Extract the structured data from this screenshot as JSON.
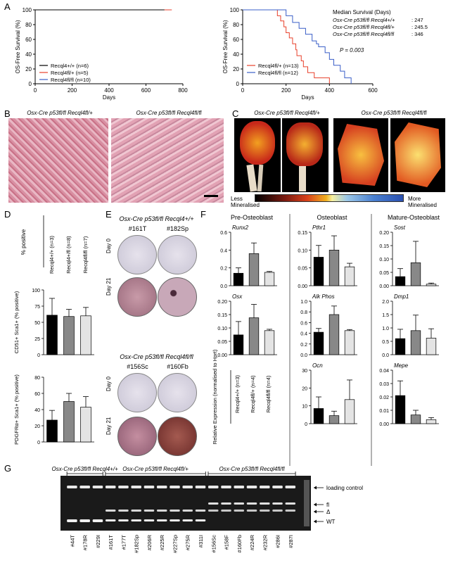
{
  "panel_letters": [
    "A",
    "B",
    "C",
    "D",
    "E",
    "F",
    "G"
  ],
  "panelA": {
    "left": {
      "ylabel": "OS-Free Survival (%)",
      "xlabel": "Days",
      "yticks": [
        "0",
        "20",
        "40",
        "60",
        "80",
        "100"
      ],
      "xticks": [
        "0",
        "200",
        "400",
        "600",
        "800"
      ],
      "legend": [
        "Recql4+/+ (n=6)",
        "Recql4fl/+ (n=5)",
        "Recql4fl/fl (n=10)"
      ]
    },
    "right": {
      "ylabel": "OS-Free Survival (%)",
      "xlabel": "Days",
      "yticks": [
        "0",
        "20",
        "40",
        "60",
        "80",
        "100"
      ],
      "xticks": [
        "0",
        "200",
        "400",
        "600"
      ],
      "legend": [
        "Recql4fl/+ (n=13)",
        "Recql4fl/fl (n=12)"
      ],
      "pvalue": "P = 0.003",
      "median_title": "Median Survival (Days)",
      "median_rows": [
        {
          "label": "Osx-Cre p53fl/fl Recql4+/+",
          "value": ": 247"
        },
        {
          "label": "Osx-Cre p53fl/fl Recql4fl/+",
          "value": ": 245.5"
        },
        {
          "label": "Osx-Cre p53fl/fl Recql4fl/fl",
          "value": ": 346"
        }
      ]
    }
  },
  "panelB": {
    "titles": [
      "Osx-Cre p53fl/fl Recql4fl/+",
      "Osx-Cre p53fl/fl Recql4fl/fl"
    ]
  },
  "panelC": {
    "titles": [
      "Osx-Cre p53fl/fl Recql4fl/+",
      "Osx-Cre p53fl/fl Recql4fl/fl"
    ],
    "scale_left": "Less Mineralised",
    "scale_right": "More Mineralised"
  },
  "panelD": {
    "top_ylabel": "% positive",
    "groups": [
      "Recql4+/+ (n=3)",
      "Recql4+/fl (n=8)",
      "Recql4fl/fl (n=7)"
    ],
    "mid_ylabel": "CD51+ Sca1+ (% positive)",
    "bot_ylabel": "PDGFRα+ Sca1+ (% positive)"
  },
  "panelE": {
    "title1": "Osx-Cre p53fl/fl Recql4+/+",
    "ids1": [
      "#161T",
      "#182Sp"
    ],
    "title2": "Osx-Cre p53fl/fl Recql4fl/fl",
    "ids2": [
      "#156Sc",
      "#160Fb"
    ],
    "rows": [
      "Day 0",
      "Day 21"
    ]
  },
  "panelF": {
    "columns": [
      "Pre-Osteoblast",
      "Osteoblast",
      "Mature-Osteoblast"
    ],
    "genes": [
      "Runx2",
      "Pthr1",
      "Sost",
      "Osx",
      "Alk Phos",
      "Dmp1",
      "Ocn",
      "Mepe"
    ],
    "ylabel": "Relative Expression (normalised to Hprt)",
    "groups": [
      "Recql4+/+ (n=3)",
      "Recql4fl/+ (n=4)",
      "Recql4fl/fl (n=4)"
    ]
  },
  "panelG": {
    "group_labels": [
      "Osx-Cre p53fl/fl Recql4+/+",
      "Osx-Cre p53fl/fl Recql4fl/+",
      "Osx-Cre p53fl/fl Recql4fl/fl"
    ],
    "lanes": [
      "#44T",
      "#178R",
      "#229I",
      "#161T",
      "#177T",
      "#182Sp",
      "#206R",
      "#225R",
      "#227Sp",
      "#275R",
      "#311I",
      "#156Sc",
      "#158F",
      "#160Fb",
      "#224R",
      "#232R",
      "#286I",
      "#287I"
    ],
    "band_labels": [
      "loading control",
      "fl",
      "Δ",
      "WT"
    ]
  },
  "chart_data": [
    {
      "type": "line",
      "title": "",
      "xlabel": "Days",
      "ylabel": "OS-Free Survival (%)",
      "xlim": [
        0,
        800
      ],
      "ylim": [
        0,
        100
      ],
      "series": [
        {
          "name": "Recql4+/+ (n=6)",
          "color": "#000000",
          "x": [
            0,
            730
          ],
          "y": [
            100,
            100
          ]
        },
        {
          "name": "Recql4fl/+ (n=5)",
          "color": "#e8412c",
          "x": [
            700,
            740
          ],
          "y": [
            100,
            100
          ]
        },
        {
          "name": "Recql4fl/fl (n=10)",
          "color": "#3a5fc8",
          "x": [
            0,
            0
          ],
          "y": [
            100,
            100
          ]
        }
      ]
    },
    {
      "type": "line",
      "title": "",
      "xlabel": "Days",
      "ylabel": "OS-Free Survival (%)",
      "xlim": [
        0,
        600
      ],
      "ylim": [
        0,
        100
      ],
      "series": [
        {
          "name": "Recql4fl/+ (n=13)",
          "color": "#e8412c",
          "x": [
            0,
            160,
            175,
            190,
            200,
            215,
            230,
            245,
            250,
            270,
            280,
            300,
            330,
            400
          ],
          "y": [
            100,
            92,
            85,
            77,
            69,
            62,
            54,
            46,
            38,
            31,
            23,
            15,
            8,
            0
          ]
        },
        {
          "name": "Recql4fl/fl (n=12)",
          "color": "#3a5fc8",
          "x": [
            0,
            200,
            230,
            260,
            290,
            320,
            340,
            350,
            380,
            400,
            420,
            450,
            470,
            500
          ],
          "y": [
            100,
            92,
            83,
            75,
            67,
            58,
            54,
            50,
            42,
            33,
            25,
            17,
            8,
            0
          ]
        }
      ]
    },
    {
      "type": "bar",
      "title": "",
      "ylabel": "CD51+ Sca1+ (% positive)",
      "ylim": [
        0,
        100
      ],
      "categories": [
        "Recql4+/+",
        "Recql4+/fl",
        "Recql4fl/fl"
      ],
      "values": [
        61,
        59,
        60
      ],
      "errors": [
        26,
        11,
        13
      ]
    },
    {
      "type": "bar",
      "title": "",
      "ylabel": "PDGFRα+ Sca1+ (% positive)",
      "ylim": [
        0,
        80
      ],
      "categories": [
        "Recql4+/+",
        "Recql4+/fl",
        "Recql4fl/fl"
      ],
      "values": [
        27,
        50,
        43
      ],
      "errors": [
        12,
        10,
        13
      ]
    },
    {
      "type": "bar",
      "title": "Runx2",
      "ylim": [
        0,
        0.6
      ],
      "yticks": [
        "0.0",
        "0.2",
        "0.4",
        "0.6"
      ],
      "categories": [
        "Recql4+/+",
        "Recql4fl/+",
        "Recql4fl/fl"
      ],
      "values": [
        0.14,
        0.36,
        0.15
      ],
      "errors": [
        0.06,
        0.12,
        0.01
      ]
    },
    {
      "type": "bar",
      "title": "Pthr1",
      "ylim": [
        0,
        0.15
      ],
      "yticks": [
        "0.00",
        "0.05",
        "0.10",
        "0.15"
      ],
      "categories": [
        "Recql4+/+",
        "Recql4fl/+",
        "Recql4fl/fl"
      ],
      "values": [
        0.08,
        0.1,
        0.053
      ],
      "errors": [
        0.033,
        0.04,
        0.01
      ]
    },
    {
      "type": "bar",
      "title": "Sost",
      "ylim": [
        0,
        0.2
      ],
      "yticks": [
        "0.00",
        "0.05",
        "0.10",
        "0.15",
        "0.20"
      ],
      "categories": [
        "Recql4+/+",
        "Recql4fl/+",
        "Recql4fl/fl"
      ],
      "values": [
        0.034,
        0.086,
        0.006
      ],
      "errors": [
        0.03,
        0.08,
        0.004
      ]
    },
    {
      "type": "bar",
      "title": "Osx",
      "ylim": [
        0,
        0.2
      ],
      "yticks": [
        "0.00",
        "0.05",
        "0.10",
        "0.15",
        "0.20"
      ],
      "categories": [
        "Recql4+/+",
        "Recql4fl/+",
        "Recql4fl/fl"
      ],
      "values": [
        0.074,
        0.138,
        0.09
      ],
      "errors": [
        0.05,
        0.05,
        0.005
      ]
    },
    {
      "type": "bar",
      "title": "Alk Phos",
      "ylim": [
        0,
        1.0
      ],
      "yticks": [
        "0.0",
        "0.2",
        "0.4",
        "0.6",
        "0.8",
        "1.0"
      ],
      "categories": [
        "Recql4+/+",
        "Recql4fl/+",
        "Recql4fl/fl"
      ],
      "values": [
        0.42,
        0.75,
        0.45
      ],
      "errors": [
        0.07,
        0.16,
        0.02
      ]
    },
    {
      "type": "bar",
      "title": "Dmp1",
      "ylim": [
        0,
        2.0
      ],
      "yticks": [
        "0.0",
        "0.5",
        "1.0",
        "1.5",
        "2.0"
      ],
      "categories": [
        "Recql4+/+",
        "Recql4fl/+",
        "Recql4fl/fl"
      ],
      "values": [
        0.6,
        0.9,
        0.62
      ],
      "errors": [
        0.35,
        0.58,
        0.35
      ]
    },
    {
      "type": "bar",
      "title": "Ocn",
      "ylim": [
        0,
        30
      ],
      "yticks": [
        "0",
        "10",
        "20",
        "30"
      ],
      "categories": [
        "Recql4+/+",
        "Recql4fl/+",
        "Recql4fl/fl"
      ],
      "values": [
        8.5,
        4.5,
        13.5
      ],
      "errors": [
        6.5,
        2.5,
        11
      ]
    },
    {
      "type": "bar",
      "title": "Mepe",
      "ylim": [
        0,
        0.04
      ],
      "yticks": [
        "0.00",
        "0.01",
        "0.02",
        "0.03",
        "0.04"
      ],
      "categories": [
        "Recql4+/+",
        "Recql4fl/+",
        "Recql4fl/fl"
      ],
      "values": [
        0.021,
        0.0065,
        0.003
      ],
      "errors": [
        0.011,
        0.0035,
        0.0015
      ]
    }
  ]
}
